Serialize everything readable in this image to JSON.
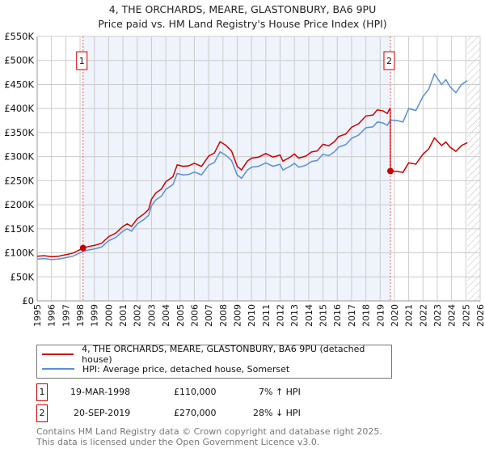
{
  "header": {
    "title": "4, THE ORCHARDS, MEARE, GLASTONBURY, BA6 9PU",
    "subtitle": "Price paid vs. HM Land Registry's House Price Index (HPI)"
  },
  "chart_data": {
    "type": "line",
    "title": "4, THE ORCHARDS, MEARE, GLASTONBURY, BA6 9PU",
    "subtitle": "Price paid vs. HM Land Registry's House Price Index (HPI)",
    "xlim": [
      1995,
      2026
    ],
    "ylim": [
      0,
      550000
    ],
    "ytick_labels": [
      "£0",
      "£50K",
      "£100K",
      "£150K",
      "£200K",
      "£250K",
      "£300K",
      "£350K",
      "£400K",
      "£450K",
      "£500K",
      "£550K"
    ],
    "xtick_labels": [
      "1995",
      "1996",
      "1997",
      "1998",
      "1999",
      "2000",
      "2001",
      "2002",
      "2003",
      "2004",
      "2005",
      "2006",
      "2007",
      "2008",
      "2009",
      "2010",
      "2011",
      "2012",
      "2013",
      "2014",
      "2015",
      "2016",
      "2017",
      "2018",
      "2019",
      "2020",
      "2021",
      "2022",
      "2023",
      "2024",
      "2025",
      "2026"
    ],
    "grid": true,
    "hatched_from": 2025.1,
    "colors": {
      "property": "#cc0000",
      "hpi": "#5b8fd4",
      "shade": "#eef3fc"
    },
    "hpi_series": [
      [
        1995,
        87000
      ],
      [
        1995.5,
        88000
      ],
      [
        1996,
        86000
      ],
      [
        1996.5,
        87000
      ],
      [
        1997,
        90000
      ],
      [
        1997.5,
        93000
      ],
      [
        1998,
        100000
      ],
      [
        1998.21,
        103000
      ],
      [
        1998.6,
        106000
      ],
      [
        1999,
        108000
      ],
      [
        1999.5,
        112000
      ],
      [
        2000,
        125000
      ],
      [
        2000.5,
        132000
      ],
      [
        2001,
        145000
      ],
      [
        2001.3,
        150000
      ],
      [
        2001.6,
        145000
      ],
      [
        2002,
        160000
      ],
      [
        2002.5,
        170000
      ],
      [
        2002.8,
        178000
      ],
      [
        2003,
        198000
      ],
      [
        2003.3,
        210000
      ],
      [
        2003.7,
        218000
      ],
      [
        2004,
        232000
      ],
      [
        2004.5,
        242000
      ],
      [
        2004.8,
        265000
      ],
      [
        2005.2,
        262000
      ],
      [
        2005.6,
        263000
      ],
      [
        2006,
        268000
      ],
      [
        2006.5,
        262000
      ],
      [
        2007,
        282000
      ],
      [
        2007.4,
        288000
      ],
      [
        2007.8,
        310000
      ],
      [
        2008.2,
        303000
      ],
      [
        2008.6,
        292000
      ],
      [
        2009,
        262000
      ],
      [
        2009.3,
        255000
      ],
      [
        2009.7,
        272000
      ],
      [
        2010,
        278000
      ],
      [
        2010.5,
        280000
      ],
      [
        2011,
        287000
      ],
      [
        2011.5,
        280000
      ],
      [
        2012,
        284000
      ],
      [
        2012.2,
        272000
      ],
      [
        2012.7,
        280000
      ],
      [
        2013,
        286000
      ],
      [
        2013.3,
        278000
      ],
      [
        2013.8,
        282000
      ],
      [
        2014.2,
        290000
      ],
      [
        2014.6,
        292000
      ],
      [
        2015,
        305000
      ],
      [
        2015.4,
        302000
      ],
      [
        2015.8,
        310000
      ],
      [
        2016.1,
        320000
      ],
      [
        2016.6,
        325000
      ],
      [
        2017,
        338000
      ],
      [
        2017.5,
        345000
      ],
      [
        2018,
        360000
      ],
      [
        2018.5,
        362000
      ],
      [
        2018.8,
        372000
      ],
      [
        2019.2,
        370000
      ],
      [
        2019.5,
        365000
      ],
      [
        2019.72,
        376000
      ],
      [
        2020.2,
        375000
      ],
      [
        2020.6,
        372000
      ],
      [
        2021,
        400000
      ],
      [
        2021.5,
        396000
      ],
      [
        2022,
        425000
      ],
      [
        2022.4,
        440000
      ],
      [
        2022.8,
        472000
      ],
      [
        2023.3,
        450000
      ],
      [
        2023.6,
        460000
      ],
      [
        2023.9,
        445000
      ],
      [
        2024.3,
        433000
      ],
      [
        2024.7,
        450000
      ],
      [
        2025.1,
        458000
      ]
    ],
    "sales": [
      {
        "num": "1",
        "x": 1998.21,
        "date": "19-MAR-1998",
        "price": 110000,
        "price_label": "£110,000",
        "hpi_change": "7% ↑ HPI"
      },
      {
        "num": "2",
        "x": 2019.72,
        "date": "20-SEP-2019",
        "price": 270000,
        "price_label": "£270,000",
        "hpi_change": "28% ↓ HPI"
      }
    ]
  },
  "legend": {
    "property": "4, THE ORCHARDS, MEARE, GLASTONBURY, BA6 9PU (detached house)",
    "hpi": "HPI: Average price, detached house, Somerset"
  },
  "footer": {
    "line1": "Contains HM Land Registry data © Crown copyright and database right 2025.",
    "line2": "This data is licensed under the Open Government Licence v3.0."
  }
}
